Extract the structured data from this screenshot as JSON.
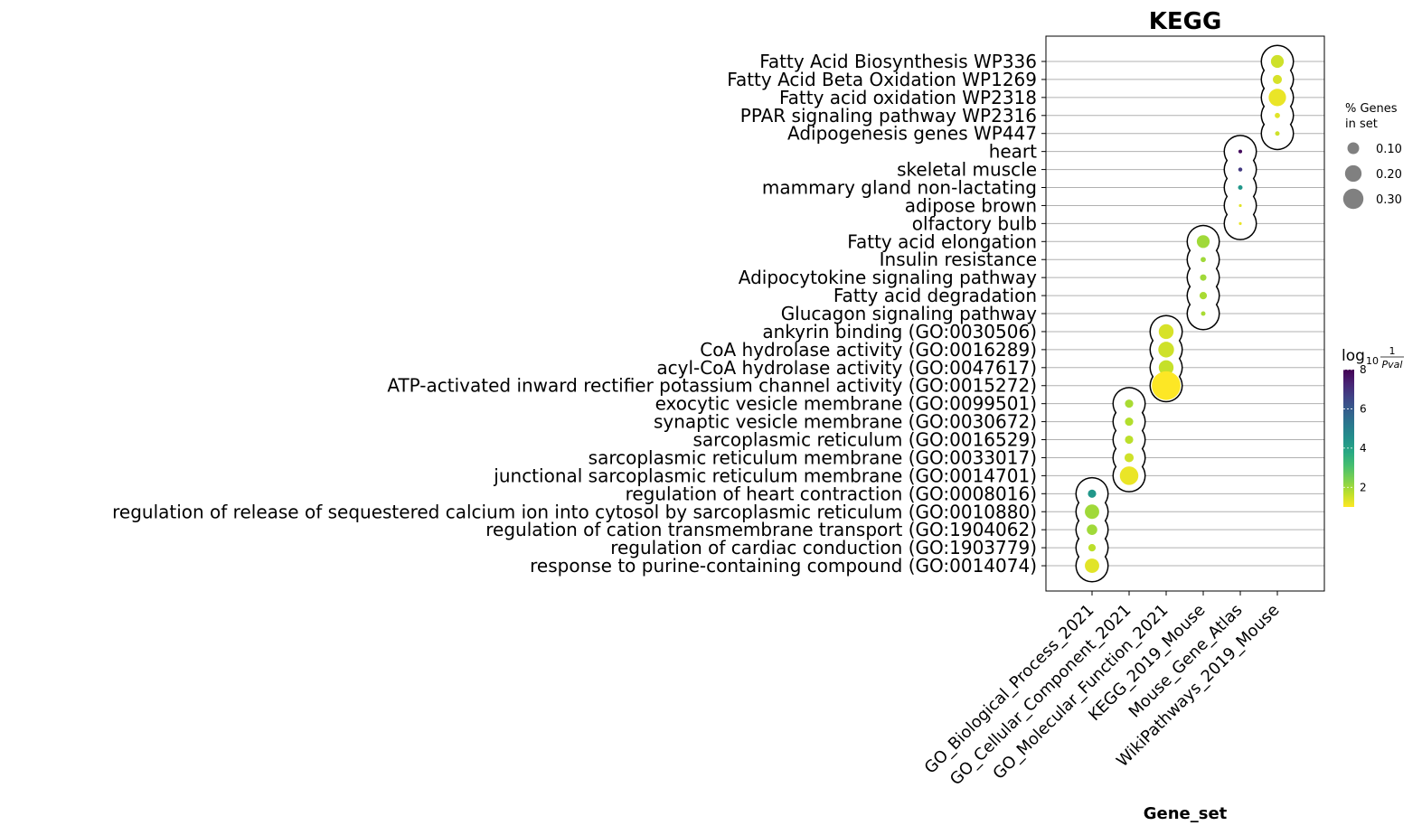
{
  "chart_data": {
    "type": "scatter",
    "title": "KEGG",
    "xlabel": "Gene_set",
    "categories": [
      "GO_Biological_Process_2021",
      "GO_Cellular_Component_2021",
      "GO_Molecular_Function_2021",
      "KEGG_2019_Mouse",
      "Mouse_Gene_Atlas",
      "WikiPathways_2019_Mouse"
    ],
    "terms": [
      "Fatty Acid Biosynthesis WP336",
      "Fatty Acid Beta Oxidation WP1269",
      "Fatty acid oxidation WP2318",
      "PPAR signaling pathway WP2316",
      "Adipogenesis genes WP447",
      "heart",
      "skeletal muscle",
      "mammary gland non-lactating",
      "adipose brown",
      "olfactory bulb",
      "Fatty acid elongation",
      "Insulin resistance",
      "Adipocytokine signaling pathway",
      "Fatty acid degradation",
      "Glucagon signaling pathway",
      "ankyrin binding (GO:0030506)",
      "CoA hydrolase activity (GO:0016289)",
      "acyl-CoA hydrolase activity (GO:0047617)",
      "ATP-activated inward rectifier potassium channel activity (GO:0015272)",
      "exocytic vesicle membrane (GO:0099501)",
      "synaptic vesicle membrane (GO:0030672)",
      "sarcoplasmic reticulum (GO:0016529)",
      "sarcoplasmic reticulum membrane (GO:0033017)",
      "junctional sarcoplasmic reticulum membrane (GO:0014701)",
      "regulation of heart contraction (GO:0008016)",
      "regulation of release of sequestered calcium ion into cytosol by sarcoplasmic reticulum (GO:0010880)",
      "regulation of cation transmembrane transport (GO:1904062)",
      "regulation of cardiac conduction (GO:1903779)",
      "response to purine-containing compound (GO:0014074)"
    ],
    "points": [
      {
        "term": "Fatty Acid Biosynthesis WP336",
        "gene_set": "WikiPathways_2019_Mouse",
        "pct_genes": 0.12,
        "neg_log10_p": 1.5
      },
      {
        "term": "Fatty Acid Beta Oxidation WP1269",
        "gene_set": "WikiPathways_2019_Mouse",
        "pct_genes": 0.06,
        "neg_log10_p": 1.4
      },
      {
        "term": "Fatty acid oxidation WP2318",
        "gene_set": "WikiPathways_2019_Mouse",
        "pct_genes": 0.22,
        "neg_log10_p": 1.2
      },
      {
        "term": "PPAR signaling pathway WP2316",
        "gene_set": "WikiPathways_2019_Mouse",
        "pct_genes": 0.02,
        "neg_log10_p": 1.3
      },
      {
        "term": "Adipogenesis genes WP447",
        "gene_set": "WikiPathways_2019_Mouse",
        "pct_genes": 0.015,
        "neg_log10_p": 1.5
      },
      {
        "term": "heart",
        "gene_set": "Mouse_Gene_Atlas",
        "pct_genes": 0.01,
        "neg_log10_p": 7.8
      },
      {
        "term": "skeletal muscle",
        "gene_set": "Mouse_Gene_Atlas",
        "pct_genes": 0.012,
        "neg_log10_p": 6.8
      },
      {
        "term": "mammary gland non-lactating",
        "gene_set": "Mouse_Gene_Atlas",
        "pct_genes": 0.015,
        "neg_log10_p": 4.3
      },
      {
        "term": "adipose brown",
        "gene_set": "Mouse_Gene_Atlas",
        "pct_genes": 0.006,
        "neg_log10_p": 1.3
      },
      {
        "term": "olfactory bulb",
        "gene_set": "Mouse_Gene_Atlas",
        "pct_genes": 0.006,
        "neg_log10_p": 1.2
      },
      {
        "term": "Fatty acid elongation",
        "gene_set": "KEGG_2019_Mouse",
        "pct_genes": 0.12,
        "neg_log10_p": 2.0
      },
      {
        "term": "Insulin resistance",
        "gene_set": "KEGG_2019_Mouse",
        "pct_genes": 0.02,
        "neg_log10_p": 2.0
      },
      {
        "term": "Adipocytokine signaling pathway",
        "gene_set": "KEGG_2019_Mouse",
        "pct_genes": 0.03,
        "neg_log10_p": 2.0
      },
      {
        "term": "Fatty acid degradation",
        "gene_set": "KEGG_2019_Mouse",
        "pct_genes": 0.04,
        "neg_log10_p": 1.9
      },
      {
        "term": "Glucagon signaling pathway",
        "gene_set": "KEGG_2019_Mouse",
        "pct_genes": 0.015,
        "neg_log10_p": 1.9
      },
      {
        "term": "ankyrin binding (GO:0030506)",
        "gene_set": "GO_Molecular_Function_2021",
        "pct_genes": 0.16,
        "neg_log10_p": 1.4
      },
      {
        "term": "CoA hydrolase activity (GO:0016289)",
        "gene_set": "GO_Molecular_Function_2021",
        "pct_genes": 0.18,
        "neg_log10_p": 1.5
      },
      {
        "term": "acyl-CoA hydrolase activity (GO:0047617)",
        "gene_set": "GO_Molecular_Function_2021",
        "pct_genes": 0.16,
        "neg_log10_p": 1.6
      },
      {
        "term": "ATP-activated inward rectifier potassium channel activity (GO:0015272)",
        "gene_set": "GO_Molecular_Function_2021",
        "pct_genes": 0.6,
        "neg_log10_p": 1.0
      },
      {
        "term": "exocytic vesicle membrane (GO:0099501)",
        "gene_set": "GO_Cellular_Component_2021",
        "pct_genes": 0.05,
        "neg_log10_p": 1.9
      },
      {
        "term": "synaptic vesicle membrane (GO:0030672)",
        "gene_set": "GO_Cellular_Component_2021",
        "pct_genes": 0.05,
        "neg_log10_p": 1.8
      },
      {
        "term": "sarcoplasmic reticulum (GO:0016529)",
        "gene_set": "GO_Cellular_Component_2021",
        "pct_genes": 0.05,
        "neg_log10_p": 1.7
      },
      {
        "term": "sarcoplasmic reticulum membrane (GO:0033017)",
        "gene_set": "GO_Cellular_Component_2021",
        "pct_genes": 0.06,
        "neg_log10_p": 1.5
      },
      {
        "term": "junctional sarcoplasmic reticulum membrane (GO:0014701)",
        "gene_set": "GO_Cellular_Component_2021",
        "pct_genes": 0.25,
        "neg_log10_p": 1.2
      },
      {
        "term": "regulation of heart contraction (GO:0008016)",
        "gene_set": "GO_Biological_Process_2021",
        "pct_genes": 0.05,
        "neg_log10_p": 4.3
      },
      {
        "term": "regulation of release of sequestered calcium ion into cytosol by sarcoplasmic reticulum (GO:0010880)",
        "gene_set": "GO_Biological_Process_2021",
        "pct_genes": 0.15,
        "neg_log10_p": 2.0
      },
      {
        "term": "regulation of cation transmembrane transport (GO:1904062)",
        "gene_set": "GO_Biological_Process_2021",
        "pct_genes": 0.08,
        "neg_log10_p": 2.0
      },
      {
        "term": "regulation of cardiac conduction (GO:1903779)",
        "gene_set": "GO_Biological_Process_2021",
        "pct_genes": 0.04,
        "neg_log10_p": 1.7
      },
      {
        "term": "response to purine-containing compound (GO:0014074)",
        "gene_set": "GO_Biological_Process_2021",
        "pct_genes": 0.15,
        "neg_log10_p": 1.3
      }
    ],
    "size_legend": {
      "title_line1": "% Genes",
      "title_line2": "in set",
      "values": [
        0.1,
        0.2,
        0.3
      ],
      "labels": [
        "0.10",
        "0.20",
        "0.30"
      ]
    },
    "colorbar": {
      "label": "log",
      "sub": "10",
      "numerator": "1",
      "denominator": "Pval",
      "ticks": [
        2,
        4,
        6,
        8
      ],
      "tick_labels": [
        "2",
        "4",
        "6",
        "8"
      ],
      "range": [
        1,
        8
      ],
      "colormap": "viridis_r"
    },
    "grid": true
  },
  "colors": {
    "gridline": "#b0b0b0",
    "ring": "#000000"
  }
}
